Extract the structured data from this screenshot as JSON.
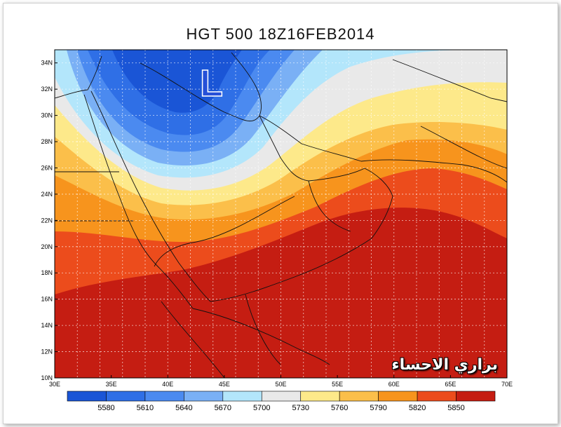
{
  "title": "HGT 500 18Z16FEB2014",
  "low_marker": "L",
  "watermark": "براري الاحساء",
  "map": {
    "lon_range": [
      30,
      70
    ],
    "lat_range": [
      10,
      35
    ],
    "lat_labels": [
      "34N",
      "32N",
      "30N",
      "28N",
      "26N",
      "24N",
      "22N",
      "20N",
      "18N",
      "16N",
      "14N",
      "12N",
      "10N"
    ],
    "lat_values": [
      34,
      32,
      30,
      28,
      26,
      24,
      22,
      20,
      18,
      16,
      14,
      12,
      10
    ],
    "lon_labels": [
      "30E",
      "35E",
      "40E",
      "45E",
      "50E",
      "55E",
      "60E",
      "65E",
      "70E"
    ],
    "lon_values": [
      30,
      35,
      40,
      45,
      50,
      55,
      60,
      65,
      70
    ]
  },
  "colorbar": {
    "labels": [
      "5580",
      "5610",
      "5640",
      "5670",
      "5700",
      "5730",
      "5760",
      "5790",
      "5820",
      "5850"
    ],
    "colors": [
      "#1a55d6",
      "#2f6fe6",
      "#4b8af0",
      "#7ab0f5",
      "#b3e6fb",
      "#e9e9e9",
      "#fde98a",
      "#fbbf4a",
      "#f7941d",
      "#ec4c1c",
      "#c51d12"
    ]
  },
  "colors": {
    "deep_blue": "#1a55d6",
    "low_marker": "#2650d8",
    "dark_red": "#c51d12"
  }
}
